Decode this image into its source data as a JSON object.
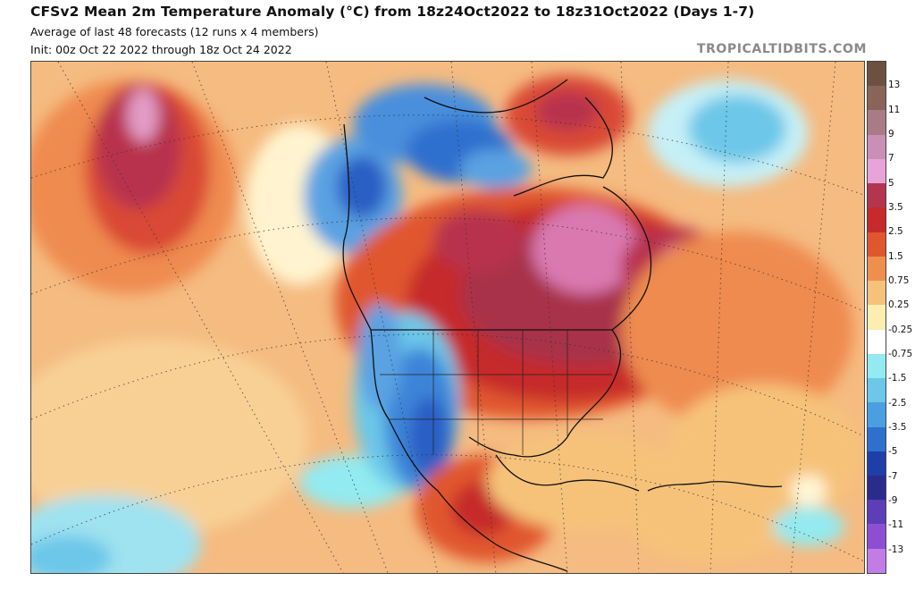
{
  "header": {
    "title": "CFSv2 Mean 2m Temperature Anomaly (°C) from 18z24Oct2022 to 18z31Oct2022 (Days 1-7)",
    "subtitle_line1": "Average of last 48 forecasts (12 runs x 4 members)",
    "subtitle_line2": "Init: 00z Oct 22 2022 through 18z Oct 24 2022",
    "brand": "TROPICALTIDBITS.COM"
  },
  "colorbar": {
    "labels": [
      "13",
      "11",
      "9",
      "7",
      "5",
      "3.5",
      "2.5",
      "1.5",
      "0.75",
      "0.25",
      "-0.25",
      "-0.75",
      "-1.5",
      "-2.5",
      "-3.5",
      "-5",
      "-7",
      "-9",
      "-11",
      "-13"
    ],
    "colors": [
      "#6e5040",
      "#8a6458",
      "#a87b86",
      "#c98fb4",
      "#e8a4d8",
      "#b3364e",
      "#c62a2c",
      "#e0572e",
      "#ef8f4e",
      "#f6c27a",
      "#fcedb0",
      "#ffffff",
      "#93eaf0",
      "#6cc7e8",
      "#4a9fe0",
      "#2f6fce",
      "#1f3fa8",
      "#2b2b8c",
      "#5d3db8",
      "#8e4ed4",
      "#c27ce6"
    ]
  },
  "map": {
    "region": "North America",
    "palette": {
      "ocean_warm": "#f3b075",
      "ocean_mild": "#f8d096",
      "warm_strong": "#d7442e",
      "hot": "#b8334e",
      "very_hot": "#d979b0",
      "cool": "#8ddcf0",
      "cold": "#5aa2e2",
      "very_cold": "#2b5fc4",
      "neutral": "#fff6d6"
    }
  }
}
